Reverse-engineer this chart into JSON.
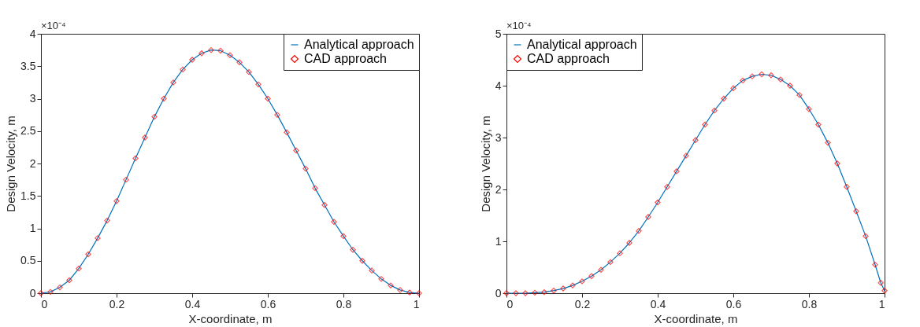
{
  "chart_data": [
    {
      "type": "line",
      "xlabel": "X-coordinate, m",
      "ylabel": "Design Velocity, m",
      "annotations": [
        "×10⁻⁴"
      ],
      "xlim": [
        0,
        1
      ],
      "ylim": [
        0,
        4
      ],
      "xticks": [
        0,
        0.2,
        0.4,
        0.6,
        0.8,
        1
      ],
      "yticks": [
        0,
        0.5,
        1,
        1.5,
        2,
        2.5,
        3,
        3.5,
        4
      ],
      "legend": "top right",
      "grid": false,
      "x": [
        0,
        0.025,
        0.05,
        0.075,
        0.1,
        0.125,
        0.15,
        0.175,
        0.2,
        0.225,
        0.25,
        0.275,
        0.3,
        0.325,
        0.35,
        0.375,
        0.4,
        0.425,
        0.45,
        0.475,
        0.5,
        0.525,
        0.55,
        0.575,
        0.6,
        0.625,
        0.65,
        0.675,
        0.7,
        0.725,
        0.75,
        0.775,
        0.8,
        0.825,
        0.85,
        0.875,
        0.9,
        0.925,
        0.95,
        0.975,
        1
      ],
      "series": [
        {
          "name": "Analytical approach",
          "type": "line",
          "color": "#0072bd",
          "values": [
            0,
            0.02,
            0.09,
            0.2,
            0.38,
            0.6,
            0.85,
            1.12,
            1.42,
            1.75,
            2.08,
            2.4,
            2.72,
            3.0,
            3.25,
            3.45,
            3.6,
            3.7,
            3.75,
            3.74,
            3.67,
            3.56,
            3.41,
            3.22,
            3.0,
            2.75,
            2.48,
            2.2,
            1.92,
            1.62,
            1.36,
            1.1,
            0.88,
            0.67,
            0.5,
            0.35,
            0.22,
            0.12,
            0.05,
            0.01,
            0
          ]
        },
        {
          "name": "CAD approach",
          "type": "scatter",
          "marker": "diamond",
          "color": "#ff0000",
          "values": [
            0,
            0.02,
            0.09,
            0.2,
            0.38,
            0.6,
            0.85,
            1.12,
            1.42,
            1.75,
            2.08,
            2.4,
            2.72,
            3.0,
            3.25,
            3.45,
            3.6,
            3.7,
            3.75,
            3.74,
            3.67,
            3.56,
            3.41,
            3.22,
            3.0,
            2.75,
            2.48,
            2.2,
            1.92,
            1.62,
            1.36,
            1.1,
            0.88,
            0.67,
            0.5,
            0.35,
            0.22,
            0.12,
            0.05,
            0.01,
            0
          ]
        }
      ]
    },
    {
      "type": "line",
      "xlabel": "X-coordinate, m",
      "ylabel": "Design Velocity, m",
      "annotations": [
        "×10⁻⁴"
      ],
      "xlim": [
        0,
        1
      ],
      "ylim": [
        0,
        5
      ],
      "xticks": [
        0,
        0.2,
        0.4,
        0.6,
        0.8,
        1
      ],
      "yticks": [
        0,
        1,
        2,
        3,
        4,
        5
      ],
      "legend": "top left",
      "grid": false,
      "x": [
        0,
        0.025,
        0.05,
        0.075,
        0.1,
        0.125,
        0.15,
        0.175,
        0.2,
        0.225,
        0.25,
        0.275,
        0.3,
        0.325,
        0.35,
        0.375,
        0.4,
        0.425,
        0.45,
        0.475,
        0.5,
        0.525,
        0.55,
        0.575,
        0.6,
        0.625,
        0.65,
        0.675,
        0.7,
        0.725,
        0.75,
        0.775,
        0.8,
        0.825,
        0.85,
        0.875,
        0.9,
        0.925,
        0.95,
        0.975,
        0.99,
        1
      ],
      "series": [
        {
          "name": "Analytical approach",
          "type": "line",
          "color": "#0072bd",
          "values": [
            0,
            0,
            0,
            0.01,
            0.02,
            0.05,
            0.09,
            0.15,
            0.23,
            0.33,
            0.45,
            0.6,
            0.77,
            0.97,
            1.2,
            1.47,
            1.75,
            2.05,
            2.35,
            2.65,
            2.95,
            3.25,
            3.52,
            3.75,
            3.95,
            4.1,
            4.18,
            4.22,
            4.2,
            4.12,
            4.0,
            3.82,
            3.55,
            3.25,
            2.9,
            2.5,
            2.05,
            1.58,
            1.1,
            0.55,
            0.2,
            0.05
          ]
        },
        {
          "name": "CAD approach",
          "type": "scatter",
          "marker": "diamond",
          "color": "#ff0000",
          "values": [
            0,
            0,
            0,
            0.01,
            0.02,
            0.05,
            0.09,
            0.15,
            0.23,
            0.33,
            0.45,
            0.6,
            0.77,
            0.97,
            1.2,
            1.47,
            1.75,
            2.05,
            2.35,
            2.65,
            2.95,
            3.25,
            3.52,
            3.75,
            3.95,
            4.1,
            4.18,
            4.22,
            4.2,
            4.12,
            4.0,
            3.82,
            3.55,
            3.25,
            2.9,
            2.5,
            2.05,
            1.58,
            1.1,
            0.55,
            0.2,
            0.05
          ]
        }
      ]
    }
  ]
}
